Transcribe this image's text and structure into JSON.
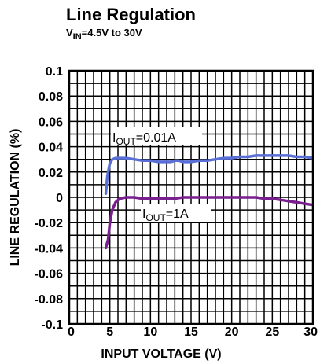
{
  "chart_data": {
    "type": "line",
    "title": "Line Regulation",
    "subtitle": {
      "main": "V",
      "sub": "IN",
      "rest": "=4.5V to 30V"
    },
    "xlabel": "INPUT VOLTAGE (V)",
    "ylabel": "LINE REGULATION (%)",
    "xlim": [
      0,
      30
    ],
    "ylim": [
      -0.1,
      0.1
    ],
    "x_ticks": [
      0,
      5,
      10,
      15,
      20,
      25,
      30
    ],
    "x_tick_labels": [
      "0",
      "5",
      "10",
      "15",
      "20",
      "25",
      "30"
    ],
    "y_ticks": [
      0.1,
      0.08,
      0.06,
      0.04,
      0.02,
      0,
      -0.02,
      -0.04,
      -0.06,
      -0.08,
      -0.1
    ],
    "y_tick_labels": [
      "0.1",
      "0.08",
      "0.06",
      "0.04",
      "0.02",
      "0",
      "-0.02",
      "-0.04",
      "-0.06",
      "-0.08",
      "-0.1"
    ],
    "grid": true,
    "series": [
      {
        "color": "#5a6fd6",
        "label": {
          "main": "I",
          "sub": "OUT",
          "rest": "=0.01A"
        },
        "x": [
          4.5,
          4.7,
          5.0,
          5.3,
          5.7,
          6.2,
          7.0,
          8.0,
          9.0,
          10.0,
          11.0,
          12.0,
          12.5,
          13.0,
          13.5,
          14.0,
          15.0,
          16.0,
          17.0,
          18.0,
          19.0,
          20.0,
          21.0,
          22.0,
          23.0,
          24.0,
          25.0,
          26.0,
          27.0,
          28.0,
          29.0,
          30.0
        ],
        "y": [
          0.003,
          0.017,
          0.027,
          0.03,
          0.031,
          0.031,
          0.031,
          0.03,
          0.029,
          0.029,
          0.028,
          0.028,
          0.028,
          0.029,
          0.029,
          0.028,
          0.028,
          0.029,
          0.029,
          0.03,
          0.031,
          0.031,
          0.032,
          0.032,
          0.033,
          0.033,
          0.033,
          0.033,
          0.033,
          0.032,
          0.032,
          0.031
        ]
      },
      {
        "color": "#7a1f8f",
        "label": {
          "main": "I",
          "sub": "OUT",
          "rest": "=1A"
        },
        "x": [
          4.5,
          4.8,
          5.0,
          5.3,
          5.7,
          6.2,
          7.0,
          8.0,
          9.0,
          10.0,
          11.0,
          12.0,
          13.0,
          14.0,
          15.0,
          16.0,
          17.0,
          18.0,
          19.0,
          20.0,
          21.0,
          22.0,
          23.0,
          24.0,
          25.0,
          26.0,
          27.0,
          28.0,
          29.0,
          30.0
        ],
        "y": [
          -0.04,
          -0.033,
          -0.02,
          -0.01,
          -0.004,
          -0.001,
          0.0,
          0.0,
          -0.001,
          -0.001,
          -0.001,
          -0.001,
          -0.001,
          0.0,
          0.0,
          0.0,
          0.0,
          0.0,
          0.0,
          0.0,
          0.0,
          0.0,
          0.0,
          -0.001,
          -0.001,
          -0.002,
          -0.003,
          -0.004,
          -0.005,
          -0.006
        ]
      }
    ]
  }
}
